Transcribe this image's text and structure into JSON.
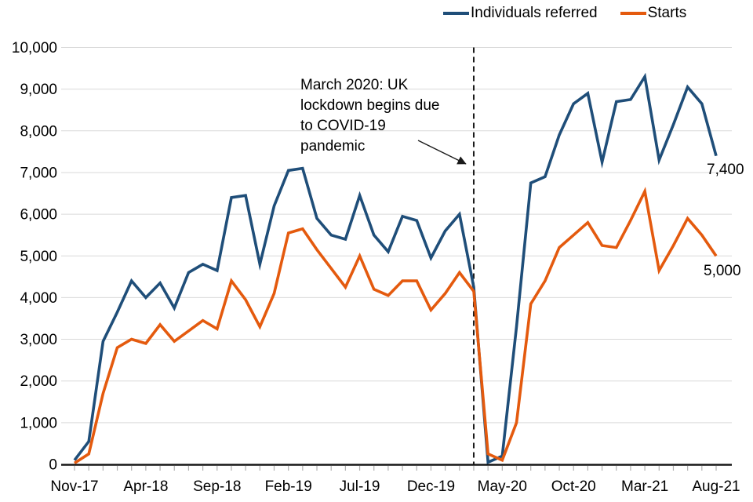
{
  "chart_data": {
    "type": "line",
    "months": [
      "Nov-17",
      "Dec-17",
      "Jan-18",
      "Feb-18",
      "Mar-18",
      "Apr-18",
      "May-18",
      "Jun-18",
      "Jul-18",
      "Aug-18",
      "Sep-18",
      "Oct-18",
      "Nov-18",
      "Dec-18",
      "Jan-19",
      "Feb-19",
      "Mar-19",
      "Apr-19",
      "May-19",
      "Jun-19",
      "Jul-19",
      "Aug-19",
      "Sep-19",
      "Oct-19",
      "Nov-19",
      "Dec-19",
      "Jan-20",
      "Feb-20",
      "Mar-20",
      "Apr-20",
      "May-20",
      "Jun-20",
      "Jul-20",
      "Aug-20",
      "Sep-20",
      "Oct-20",
      "Nov-20",
      "Dec-20",
      "Jan-21",
      "Feb-21",
      "Mar-21",
      "Apr-21",
      "May-21",
      "Jun-21",
      "Jul-21",
      "Aug-21"
    ],
    "x_tick_labels": [
      "Nov-17",
      "Apr-18",
      "Sep-18",
      "Feb-19",
      "Jul-19",
      "Dec-19",
      "May-20",
      "Oct-20",
      "Mar-21",
      "Aug-21"
    ],
    "y_ticks": [
      0,
      1000,
      2000,
      3000,
      4000,
      5000,
      6000,
      7000,
      8000,
      9000,
      10000
    ],
    "y_tick_labels": [
      "0",
      "1,000",
      "2,000",
      "3,000",
      "4,000",
      "5,000",
      "6,000",
      "7,000",
      "8,000",
      "9,000",
      "10,000"
    ],
    "ylim": [
      0,
      10000
    ],
    "grid": "horizontal",
    "legend_position": "top-right",
    "series": [
      {
        "name": "Individuals referred",
        "color": "#1f4e79",
        "values": [
          100,
          550,
          2950,
          3650,
          4400,
          4000,
          4350,
          3750,
          4600,
          4800,
          4650,
          6400,
          6450,
          4800,
          6200,
          7050,
          7100,
          5900,
          5500,
          5400,
          6450,
          5500,
          5100,
          5950,
          5850,
          4950,
          5600,
          6000,
          4250,
          50,
          200,
          3300,
          6750,
          6900,
          7900,
          8650,
          8900,
          7250,
          8700,
          8750,
          9300,
          7300,
          8150,
          9050,
          8650,
          7400
        ]
      },
      {
        "name": "Starts",
        "color": "#e45a0e",
        "values": [
          30,
          250,
          1700,
          2800,
          3000,
          2900,
          3350,
          2950,
          3200,
          3450,
          3250,
          4400,
          3950,
          3300,
          4100,
          5550,
          5650,
          5150,
          4700,
          4250,
          5000,
          4200,
          4050,
          4400,
          4400,
          3700,
          4100,
          4600,
          4150,
          250,
          100,
          1000,
          3850,
          4400,
          5200,
          5500,
          5800,
          5250,
          5200,
          5850,
          6550,
          4650,
          5250,
          5900,
          5500,
          5000
        ]
      }
    ],
    "event_line": {
      "month": "Mar-20",
      "style": "dashed",
      "color": "#1a1a1a"
    },
    "end_labels": [
      {
        "series": "Individuals referred",
        "text": "7,400"
      },
      {
        "series": "Starts",
        "text": "5,000"
      }
    ]
  },
  "annotation": {
    "lines": [
      "March 2020: UK",
      "lockdown begins due",
      "to COVID-19",
      "pandemic"
    ]
  }
}
